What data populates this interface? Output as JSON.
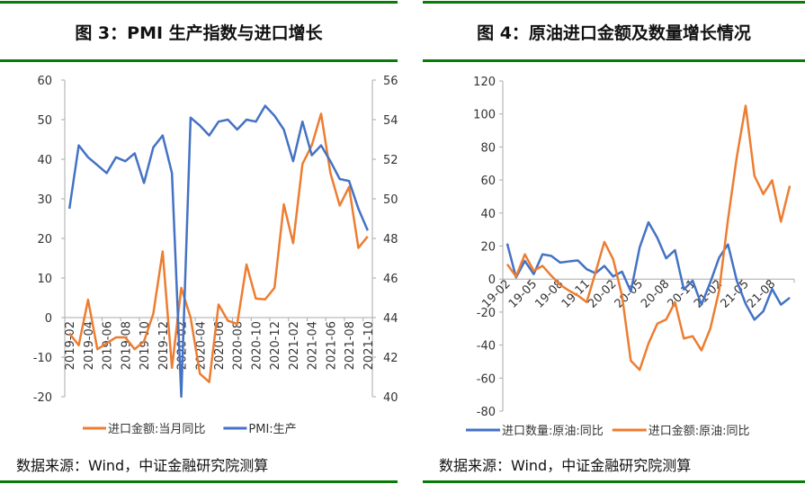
{
  "charts_meta": [
    {
      "title": "图 3：PMI 生产指数与进口增长",
      "source": "数据来源：Wind，中证金融研究院测算"
    },
    {
      "title": "图 4：原油进口金额及数量增长情况",
      "source": "数据来源：Wind，中证金融研究院测算"
    }
  ],
  "chart_data": [
    {
      "type": "line",
      "title": "图 3：PMI 生产指数与进口增长",
      "x": [
        "2019-02",
        "2019-03",
        "2019-04",
        "2019-05",
        "2019-06",
        "2019-07",
        "2019-08",
        "2019-09",
        "2019-10",
        "2019-11",
        "2019-12",
        "2020-01",
        "2020-02",
        "2020-03",
        "2020-04",
        "2020-05",
        "2020-06",
        "2020-07",
        "2020-08",
        "2020-09",
        "2020-10",
        "2020-11",
        "2020-12",
        "2021-01",
        "2021-02",
        "2021-03",
        "2021-04",
        "2021-05",
        "2021-06",
        "2021-07",
        "2021-08",
        "2021-09",
        "2021-10"
      ],
      "tick_labels": [
        "2019-02",
        "2019-04",
        "2019-06",
        "2019-08",
        "2019-10",
        "2019-12",
        "2020-02",
        "2020-04",
        "2020-06",
        "2020-08",
        "2020-10",
        "2020-12",
        "2021-02",
        "2021-04",
        "2021-06",
        "2021-08",
        "2021-10"
      ],
      "ylim_left": [
        -20,
        60
      ],
      "yticks_left": [
        -20,
        -10,
        0,
        10,
        20,
        30,
        40,
        50,
        60
      ],
      "ylim_right": [
        40,
        56
      ],
      "yticks_right": [
        40,
        42,
        44,
        46,
        48,
        50,
        52,
        54,
        56
      ],
      "legend_position": "bottom",
      "grid": false,
      "series": [
        {
          "name": "进口金额:当月同比",
          "axis": "left",
          "color": "#ED7D31",
          "values": [
            -4,
            -7,
            4.5,
            -8,
            -6.5,
            -5,
            -5,
            -8,
            -6,
            1,
            16.7,
            -12.7,
            7.5,
            0,
            -14.2,
            -16.3,
            3.3,
            -0.8,
            -1.6,
            13.4,
            4.8,
            4.6,
            7.5,
            28.6,
            18.8,
            38.8,
            43.5,
            51.5,
            36.5,
            28.3,
            33,
            17.6,
            20.5
          ]
        },
        {
          "name": "PMI:生产",
          "axis": "right",
          "color": "#4472C4",
          "values": [
            49.5,
            52.7,
            52.1,
            51.7,
            51.3,
            52.1,
            51.9,
            52.3,
            50.8,
            52.6,
            53.2,
            51.3,
            27.8,
            54.1,
            53.7,
            53.2,
            53.9,
            54.0,
            53.5,
            54.0,
            53.9,
            54.7,
            54.2,
            53.5,
            51.9,
            53.9,
            52.2,
            52.7,
            51.9,
            51.0,
            50.9,
            49.5,
            48.4
          ]
        }
      ]
    },
    {
      "type": "line",
      "title": "图 4：原油进口金额及数量增长情况",
      "x": [
        "19-02",
        "19-03",
        "19-04",
        "19-05",
        "19-06",
        "19-07",
        "19-08",
        "19-09",
        "19-10",
        "19-11",
        "19-12",
        "20-01",
        "20-02",
        "20-03",
        "20-04",
        "20-05",
        "20-06",
        "20-07",
        "20-08",
        "20-09",
        "20-10",
        "20-11",
        "20-12",
        "21-01",
        "21-02",
        "21-03",
        "21-04",
        "21-05",
        "21-06",
        "21-07",
        "21-08",
        "21-09",
        "21-10"
      ],
      "tick_labels": [
        "19-02",
        "19-05",
        "19-08",
        "19-11",
        "20-02",
        "20-05",
        "20-08",
        "20-11",
        "21-02",
        "21-05",
        "21-08"
      ],
      "ylim": [
        -80,
        120
      ],
      "yticks": [
        -80,
        -60,
        -40,
        -20,
        0,
        20,
        40,
        60,
        80,
        100,
        120
      ],
      "legend_position": "bottom",
      "grid": false,
      "series": [
        {
          "name": "进口数量:原油:同比",
          "color": "#4472C4",
          "values": [
            21.5,
            1,
            11,
            3,
            15,
            14,
            10,
            10.7,
            11.3,
            6,
            3.5,
            8,
            1.6,
            4.5,
            -7.5,
            19.2,
            34.4,
            25,
            12.6,
            17.5,
            -6.3,
            -1,
            -15.5,
            -2,
            13,
            21,
            -1,
            -15,
            -24.6,
            -19.5,
            -6,
            -15.5,
            -11.3
          ]
        },
        {
          "name": "进口金额:原油:同比",
          "color": "#ED7D31",
          "values": [
            9,
            1.5,
            15,
            5,
            8,
            2,
            -3.5,
            -7,
            -10,
            -14,
            4,
            22.5,
            12,
            -10,
            -49.5,
            -55,
            -39,
            -27,
            -24.5,
            -14,
            -36,
            -34.6,
            -43.2,
            -30,
            -7,
            36,
            74,
            105,
            62.5,
            51.5,
            59.8,
            34.8,
            56.5
          ]
        }
      ]
    }
  ]
}
